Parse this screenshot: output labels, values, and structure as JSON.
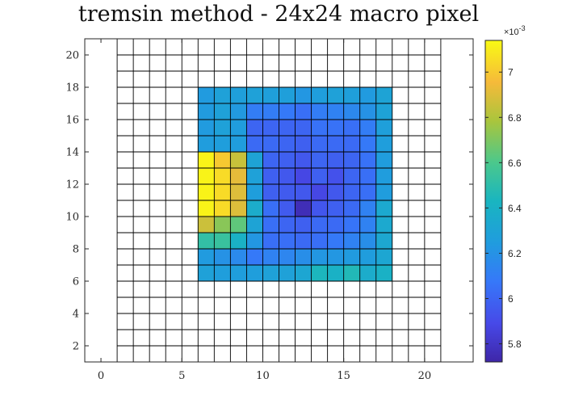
{
  "chart_data": {
    "type": "heatmap",
    "title": "tremsin method - 24x24 macro pixel",
    "xlabel": "",
    "ylabel": "",
    "xlim": [
      -1,
      23
    ],
    "ylim": [
      1,
      21
    ],
    "xticks": [
      0,
      5,
      10,
      15,
      20
    ],
    "yticks": [
      2,
      4,
      6,
      8,
      10,
      12,
      14,
      16,
      18,
      20
    ],
    "grid_x_range": [
      1,
      21
    ],
    "grid_y_range": [
      1,
      21
    ],
    "grid_step": 1,
    "filled_x_range": [
      6,
      18
    ],
    "filled_y_range": [
      6,
      18
    ],
    "colorbar": {
      "min": 0.00572,
      "max": 0.00714,
      "ticks": [
        0.0058,
        0.006,
        0.0062,
        0.0064,
        0.0066,
        0.0068,
        0.007
      ],
      "tick_labels": [
        "5.8",
        "6",
        "6.2",
        "6.4",
        "6.6",
        "6.8",
        "7"
      ],
      "exponent_label": "×10",
      "exponent_power": "-3",
      "colormap": "parula"
    },
    "rows_top_to_bottom": [
      [
        0.00624,
        0.00628,
        0.00627,
        0.00628,
        0.00627,
        0.00627,
        0.00622,
        0.00626,
        0.00628,
        0.00627,
        0.00624,
        0.0063
      ],
      [
        0.00624,
        0.00628,
        0.00623,
        0.0061,
        0.0061,
        0.00608,
        0.00604,
        0.0061,
        0.00612,
        0.00615,
        0.0062,
        0.00629
      ],
      [
        0.00624,
        0.00628,
        0.00625,
        0.006,
        0.006,
        0.006,
        0.006,
        0.00605,
        0.00605,
        0.00604,
        0.0061,
        0.00627
      ],
      [
        0.00625,
        0.00626,
        0.00625,
        0.00602,
        0.00602,
        0.006,
        0.00598,
        0.00602,
        0.00602,
        0.00602,
        0.00608,
        0.00626
      ],
      [
        0.00712,
        0.007,
        0.00685,
        0.0063,
        0.006,
        0.00598,
        0.00595,
        0.006,
        0.00598,
        0.006,
        0.00605,
        0.00625
      ],
      [
        0.00712,
        0.00705,
        0.00692,
        0.00628,
        0.00598,
        0.00595,
        0.00588,
        0.00598,
        0.00592,
        0.006,
        0.00604,
        0.00625
      ],
      [
        0.00712,
        0.00705,
        0.0069,
        0.00626,
        0.00598,
        0.00596,
        0.00595,
        0.00588,
        0.00595,
        0.006,
        0.00604,
        0.00625
      ],
      [
        0.00712,
        0.00705,
        0.0069,
        0.00636,
        0.00604,
        0.00596,
        0.00576,
        0.00594,
        0.00598,
        0.00602,
        0.00612,
        0.00634
      ],
      [
        0.00686,
        0.00672,
        0.00664,
        0.0063,
        0.00604,
        0.006,
        0.00598,
        0.00602,
        0.00602,
        0.00606,
        0.00612,
        0.00634
      ],
      [
        0.00652,
        0.00654,
        0.0064,
        0.00622,
        0.00604,
        0.00604,
        0.00602,
        0.00604,
        0.00608,
        0.00612,
        0.00618,
        0.00633
      ],
      [
        0.00624,
        0.0062,
        0.00616,
        0.00608,
        0.00612,
        0.00614,
        0.00618,
        0.00622,
        0.00622,
        0.00624,
        0.00625,
        0.00632
      ],
      [
        0.00628,
        0.00626,
        0.00626,
        0.00626,
        0.00628,
        0.00628,
        0.00632,
        0.00644,
        0.0064,
        0.00646,
        0.00636,
        0.0064
      ]
    ]
  }
}
